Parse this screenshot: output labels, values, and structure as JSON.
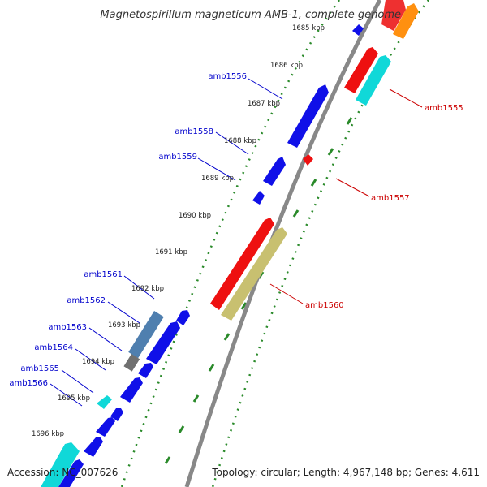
{
  "title": "Magnetospirillum magneticum AMB-1, complete genome",
  "accession": "Accession: NC_007626",
  "summary": "Topology: circular; Length: 4,967,148 bp; Genes: 4,611",
  "ticks": [
    "1685 kbp",
    "1686 kbp",
    "1687 kbp",
    "1688 kbp",
    "1689 kbp",
    "1690 kbp",
    "1691 kbp",
    "1692 kbp",
    "1693 kbp",
    "1694 kbp",
    "1695 kbp",
    "1696 kbp"
  ],
  "gene_labels": {
    "amb1555": "amb1555",
    "amb1556": "amb1556",
    "amb1557": "amb1557",
    "amb1558": "amb1558",
    "amb1559": "amb1559",
    "amb1560": "amb1560",
    "amb1561": "amb1561",
    "amb1562": "amb1562",
    "amb1563": "amb1563",
    "amb1564": "amb1564",
    "amb1565": "amb1565",
    "amb1566": "amb1566"
  },
  "colors": {
    "forward_label": "#0000cc",
    "reverse_label": "#cc0000",
    "blue": "#1010e8",
    "red": "#ee1010",
    "cyan": "#10d8d8",
    "orange": "#ff9010",
    "olive": "#c8c070",
    "steel": "#4f7faf",
    "gray": "#707070",
    "backbone": "#888888",
    "dots": "#2a8a2a"
  }
}
